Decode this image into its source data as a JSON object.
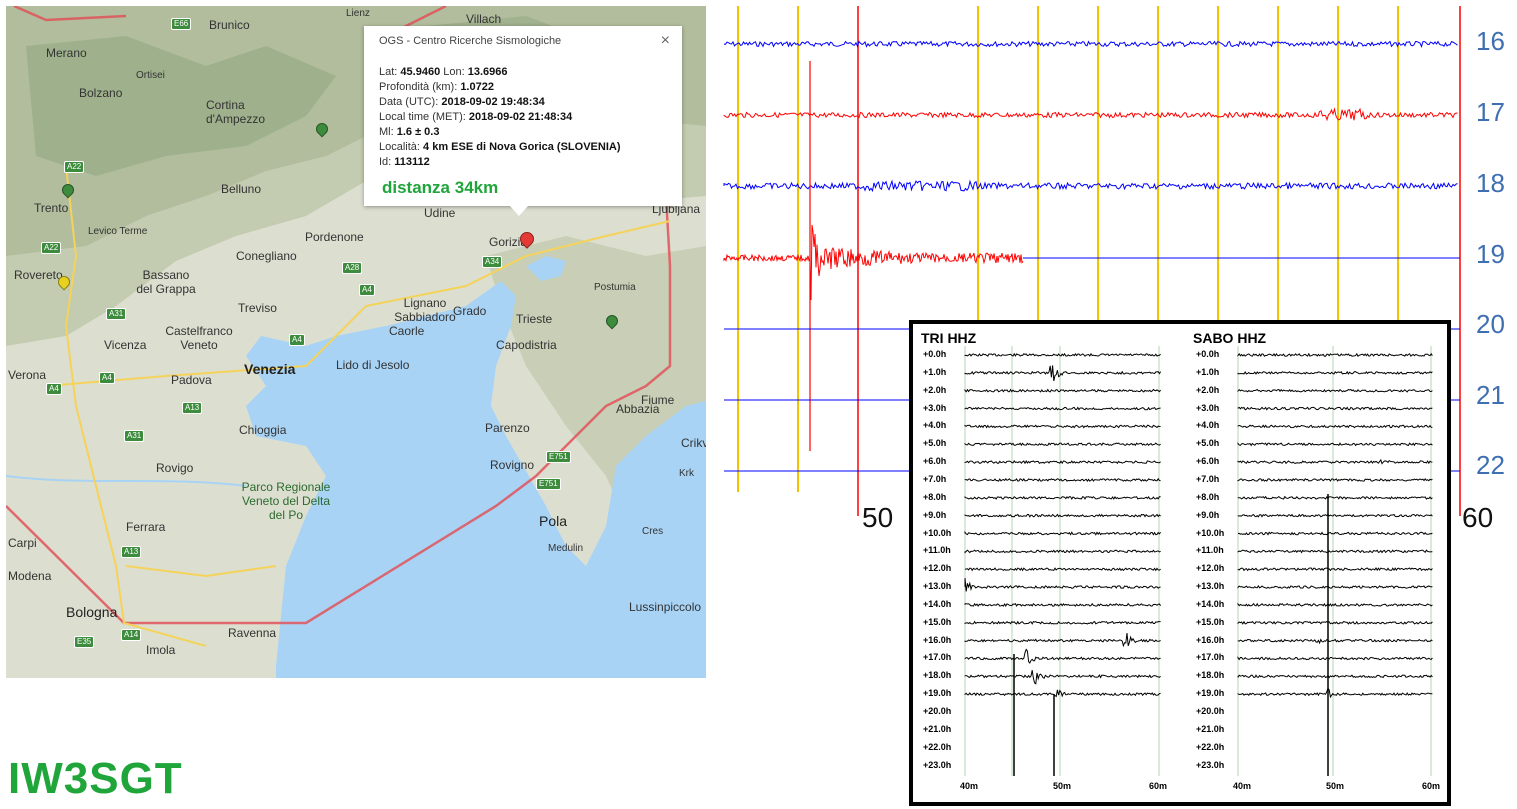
{
  "popup": {
    "title": "OGS - Centro Ricerche Sismologiche",
    "close_glyph": "×",
    "lat_label": "Lat:",
    "lat": "45.9460",
    "lon_label": "Lon:",
    "lon": "13.6966",
    "depth_label": "Profondità (km):",
    "depth": "1.0722",
    "date_utc_label": "Data (UTC):",
    "date_utc": "2018-09-02 19:48:34",
    "local_time_label": "Local time (MET):",
    "local_time": "2018-09-02 21:48:34",
    "ml_label": "Ml:",
    "ml": "1.6 ± 0.3",
    "locality_label": "Località:",
    "locality": "4 km ESE di Nova Gorica (SLOVENIA)",
    "id_label": "Id:",
    "id": "113112",
    "distance": "distanza 34km"
  },
  "map": {
    "places": [
      "Merano",
      "Brunico",
      "Bolzano",
      "Ortisei",
      "Cortina d'Ampezzo",
      "Trento",
      "Levico Terme",
      "Rovereto",
      "Belluno",
      "Udine",
      "Pordenone",
      "Conegliano",
      "Bassano del Grappa",
      "Treviso",
      "Castelfranco Veneto",
      "Vicenza",
      "Padova",
      "Venezia",
      "Lido di Jesolo",
      "Lignano Sabbiadoro",
      "Grado",
      "Caorle",
      "Gorizia",
      "Trieste",
      "Capodistria",
      "Postumia",
      "Ljubljana",
      "Verona",
      "Chioggia",
      "Rovigo",
      "Parco Regionale Veneto del Delta del Po",
      "Ferrara",
      "Bologna",
      "Ravenna",
      "Imola",
      "Modena",
      "Carpi",
      "Parenzo",
      "Rovigno",
      "Pola",
      "Medulin",
      "Abbazia",
      "Fiume",
      "Crikvenica",
      "Krk",
      "Cres",
      "Lussinpiccolo",
      "Lienz",
      "Villach"
    ],
    "roads": [
      "E66",
      "A22",
      "A28",
      "A34",
      "A4",
      "A31",
      "A13",
      "A14",
      "E35",
      "E751"
    ],
    "colors": {
      "land": "#d9dccc",
      "sea": "#a8d3f5",
      "region_border": "#e0545b",
      "pin_event": "#e53935",
      "pin_station": "#3d8c3d",
      "pin_station_alt": "#e8d21f"
    }
  },
  "helicorder": {
    "hour_labels": [
      "16",
      "17",
      "18",
      "19",
      "20",
      "21",
      "22"
    ],
    "minute_start": "50",
    "minute_end": "60",
    "colors": {
      "trace_a": "#0000ff",
      "trace_b": "#ff0000",
      "minute_line": "#f2c200",
      "red_line": "#ff0000",
      "blank_trace": "#0000ff"
    }
  },
  "panel": {
    "left_title": "TRI HHZ",
    "right_title": "SABO HHZ",
    "rows": [
      "+0.0h",
      "+1.0h",
      "+2.0h",
      "+3.0h",
      "+4.0h",
      "+5.0h",
      "+6.0h",
      "+7.0h",
      "+8.0h",
      "+9.0h",
      "+10.0h",
      "+11.0h",
      "+12.0h",
      "+13.0h",
      "+14.0h",
      "+15.0h",
      "+16.0h",
      "+17.0h",
      "+18.0h",
      "+19.0h",
      "+20.0h",
      "+21.0h",
      "+22.0h",
      "+23.0h"
    ],
    "axis_labels": [
      "40m",
      "50m",
      "60m"
    ]
  },
  "footer": {
    "callsign": "IW3SGT"
  }
}
